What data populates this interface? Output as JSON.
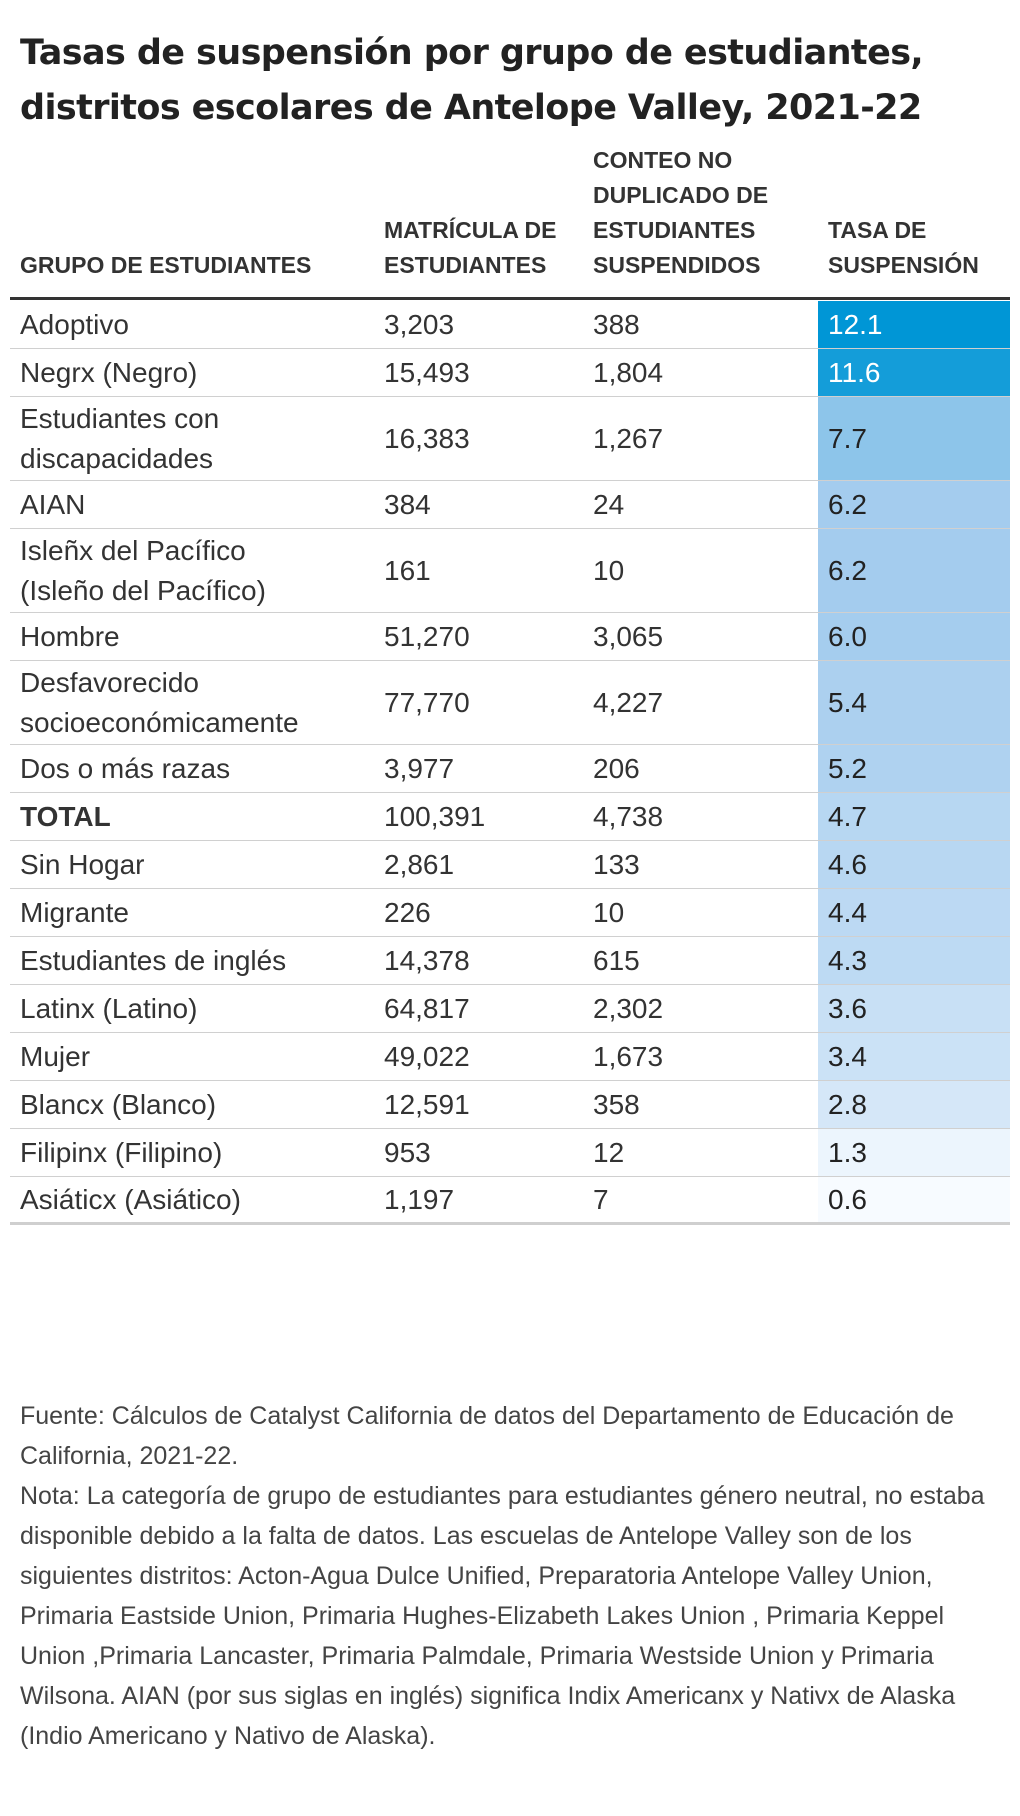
{
  "chart_data": {
    "type": "table",
    "title_lines": [
      "Tasas de suspensión por grupo de estudiantes,",
      "distritos escolares de Antelope Valley, 2021-22"
    ],
    "columns": [
      {
        "lines": [
          "GRUPO DE ESTUDIANTES"
        ]
      },
      {
        "lines": [
          "MATRÍCULA DE",
          "ESTUDIANTES"
        ]
      },
      {
        "lines": [
          "CONTEO NO",
          "DUPLICADO DE",
          "ESTUDIANTES",
          "SUSPENDIDOS"
        ]
      },
      {
        "lines": [
          "TASA DE",
          "SUSPENSIÓN"
        ]
      }
    ],
    "rows": [
      {
        "group": [
          "Adoptivo"
        ],
        "enrollment": "3,203",
        "suspended": "388",
        "rate": 12.1,
        "rate_text": "12.1",
        "bold": false
      },
      {
        "group": [
          "Negrx (Negro)"
        ],
        "enrollment": "15,493",
        "suspended": "1,804",
        "rate": 11.6,
        "rate_text": "11.6",
        "bold": false
      },
      {
        "group": [
          "Estudiantes con",
          "discapacidades"
        ],
        "enrollment": "16,383",
        "suspended": "1,267",
        "rate": 7.7,
        "rate_text": "7.7",
        "bold": false
      },
      {
        "group": [
          "AIAN"
        ],
        "enrollment": "384",
        "suspended": "24",
        "rate": 6.2,
        "rate_text": "6.2",
        "bold": false
      },
      {
        "group": [
          "Isleñx del Pacífico",
          "(Isleño del Pacífico)"
        ],
        "enrollment": "161",
        "suspended": "10",
        "rate": 6.2,
        "rate_text": "6.2",
        "bold": false
      },
      {
        "group": [
          "Hombre"
        ],
        "enrollment": "51,270",
        "suspended": "3,065",
        "rate": 6.0,
        "rate_text": "6.0",
        "bold": false
      },
      {
        "group": [
          "Desfavorecido",
          "socioeconómicamente"
        ],
        "enrollment": "77,770",
        "suspended": "4,227",
        "rate": 5.4,
        "rate_text": "5.4",
        "bold": false
      },
      {
        "group": [
          "Dos o más razas"
        ],
        "enrollment": "3,977",
        "suspended": "206",
        "rate": 5.2,
        "rate_text": "5.2",
        "bold": false
      },
      {
        "group": [
          "TOTAL"
        ],
        "enrollment": "100,391",
        "suspended": "4,738",
        "rate": 4.7,
        "rate_text": "4.7",
        "bold": true
      },
      {
        "group": [
          "Sin Hogar"
        ],
        "enrollment": "2,861",
        "suspended": "133",
        "rate": 4.6,
        "rate_text": "4.6",
        "bold": false
      },
      {
        "group": [
          "Migrante"
        ],
        "enrollment": "226",
        "suspended": "10",
        "rate": 4.4,
        "rate_text": "4.4",
        "bold": false
      },
      {
        "group": [
          "Estudiantes de inglés"
        ],
        "enrollment": "14,378",
        "suspended": "615",
        "rate": 4.3,
        "rate_text": "4.3",
        "bold": false
      },
      {
        "group": [
          "Latinx (Latino)"
        ],
        "enrollment": "64,817",
        "suspended": "2,302",
        "rate": 3.6,
        "rate_text": "3.6",
        "bold": false
      },
      {
        "group": [
          "Mujer"
        ],
        "enrollment": "49,022",
        "suspended": "1,673",
        "rate": 3.4,
        "rate_text": "3.4",
        "bold": false
      },
      {
        "group": [
          "Blancx (Blanco)"
        ],
        "enrollment": "12,591",
        "suspended": "358",
        "rate": 2.8,
        "rate_text": "2.8",
        "bold": false
      },
      {
        "group": [
          "Filipinx (Filipino)"
        ],
        "enrollment": "953",
        "suspended": "12",
        "rate": 1.3,
        "rate_text": "1.3",
        "bold": false
      },
      {
        "group": [
          "Asiáticx (Asiático)"
        ],
        "enrollment": "1,197",
        "suspended": "7",
        "rate": 0.6,
        "rate_text": "0.6",
        "bold": false
      }
    ],
    "color_scale": {
      "column": "TASA DE SUSPENSIÓN",
      "low_color": "#f7fbff",
      "mid_color": "#a6cdee",
      "high_color": "#0096d6",
      "high_text_color": "#ffffff",
      "low_text_color": "#222222"
    }
  },
  "footnotes": {
    "source": "Fuente: Cálculos de Catalyst California de datos del Departamento de Educación de California, 2021-22.",
    "note": "Nota: La categoría de grupo de estudiantes para estudiantes género neutral, no estaba disponible debido a la falta de datos. Las escuelas de Antelope Valley son de los siguientes distritos: Acton-Agua Dulce Unified, Preparatoria Antelope Valley Union, Primaria Eastside Union, Primaria Hughes-Elizabeth Lakes Union , Primaria Keppel Union ,Primaria Lancaster, Primaria Palmdale, Primaria Westside Union y Primaria Wilsona. AIAN (por sus siglas en inglés) significa Indix Americanx y Nativx de Alaska (Indio Americano y Nativo de Alaska)."
  }
}
